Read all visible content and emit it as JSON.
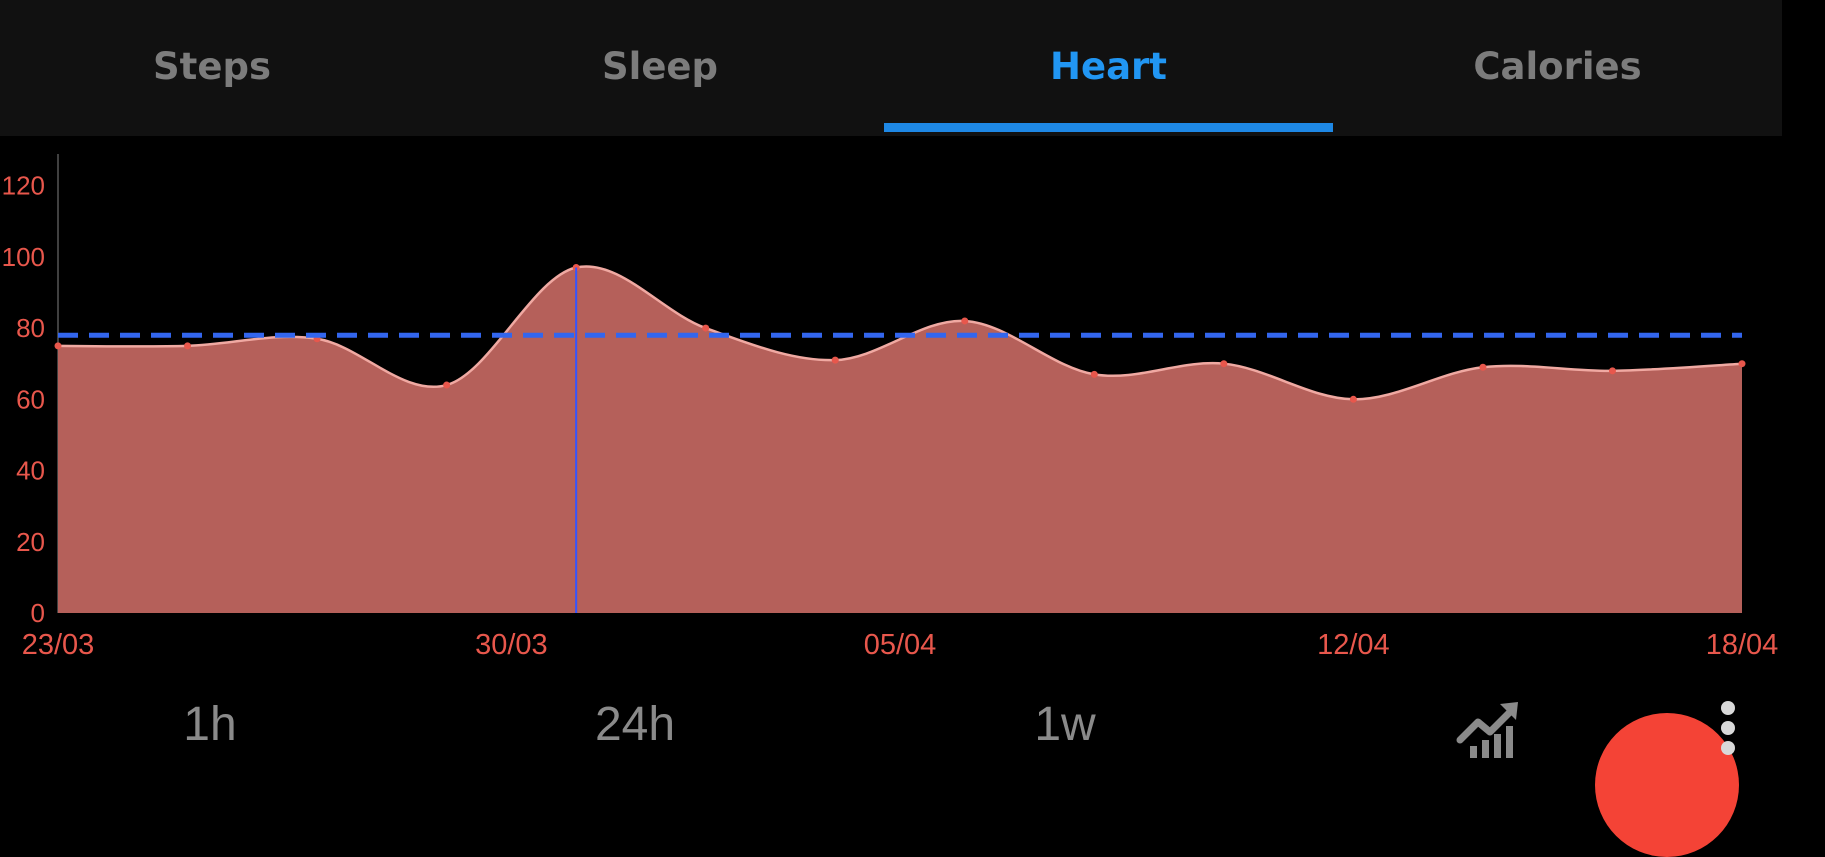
{
  "tabs": [
    {
      "label": "Steps",
      "active": false
    },
    {
      "label": "Sleep",
      "active": false
    },
    {
      "label": "Heart",
      "active": true
    },
    {
      "label": "Calories",
      "active": false
    }
  ],
  "colors": {
    "accent": "#2196f3",
    "area_fill": "#b5605a",
    "area_line": "#f0a9a2",
    "axis_text": "#e8574c",
    "average_line": "#3366ee",
    "fab": "#f44336"
  },
  "chart_data": {
    "type": "area",
    "x_tick_labels": [
      "23/03",
      "30/03",
      "05/04",
      "12/04",
      "18/04"
    ],
    "y_tick_labels": [
      "0",
      "20",
      "40",
      "60",
      "80",
      "100",
      "120"
    ],
    "ylim": [
      0,
      130
    ],
    "x": [
      "23/03",
      "25/03",
      "27/03",
      "29/03",
      "31/03",
      "02/04",
      "04/04",
      "06/04",
      "08/04",
      "10/04",
      "12/04",
      "14/04",
      "16/04",
      "18/04"
    ],
    "values": [
      75,
      75,
      77,
      64,
      97,
      80,
      71,
      82,
      67,
      70,
      60,
      69,
      68,
      70
    ],
    "average": 78,
    "selected_index": 4,
    "grid": false
  },
  "range_buttons": [
    {
      "label": "1h"
    },
    {
      "label": "24h"
    },
    {
      "label": "1w"
    }
  ],
  "icons": {
    "trend": "trending-up-chart-icon",
    "overflow": "more-vert-icon",
    "fab": "record-button"
  }
}
